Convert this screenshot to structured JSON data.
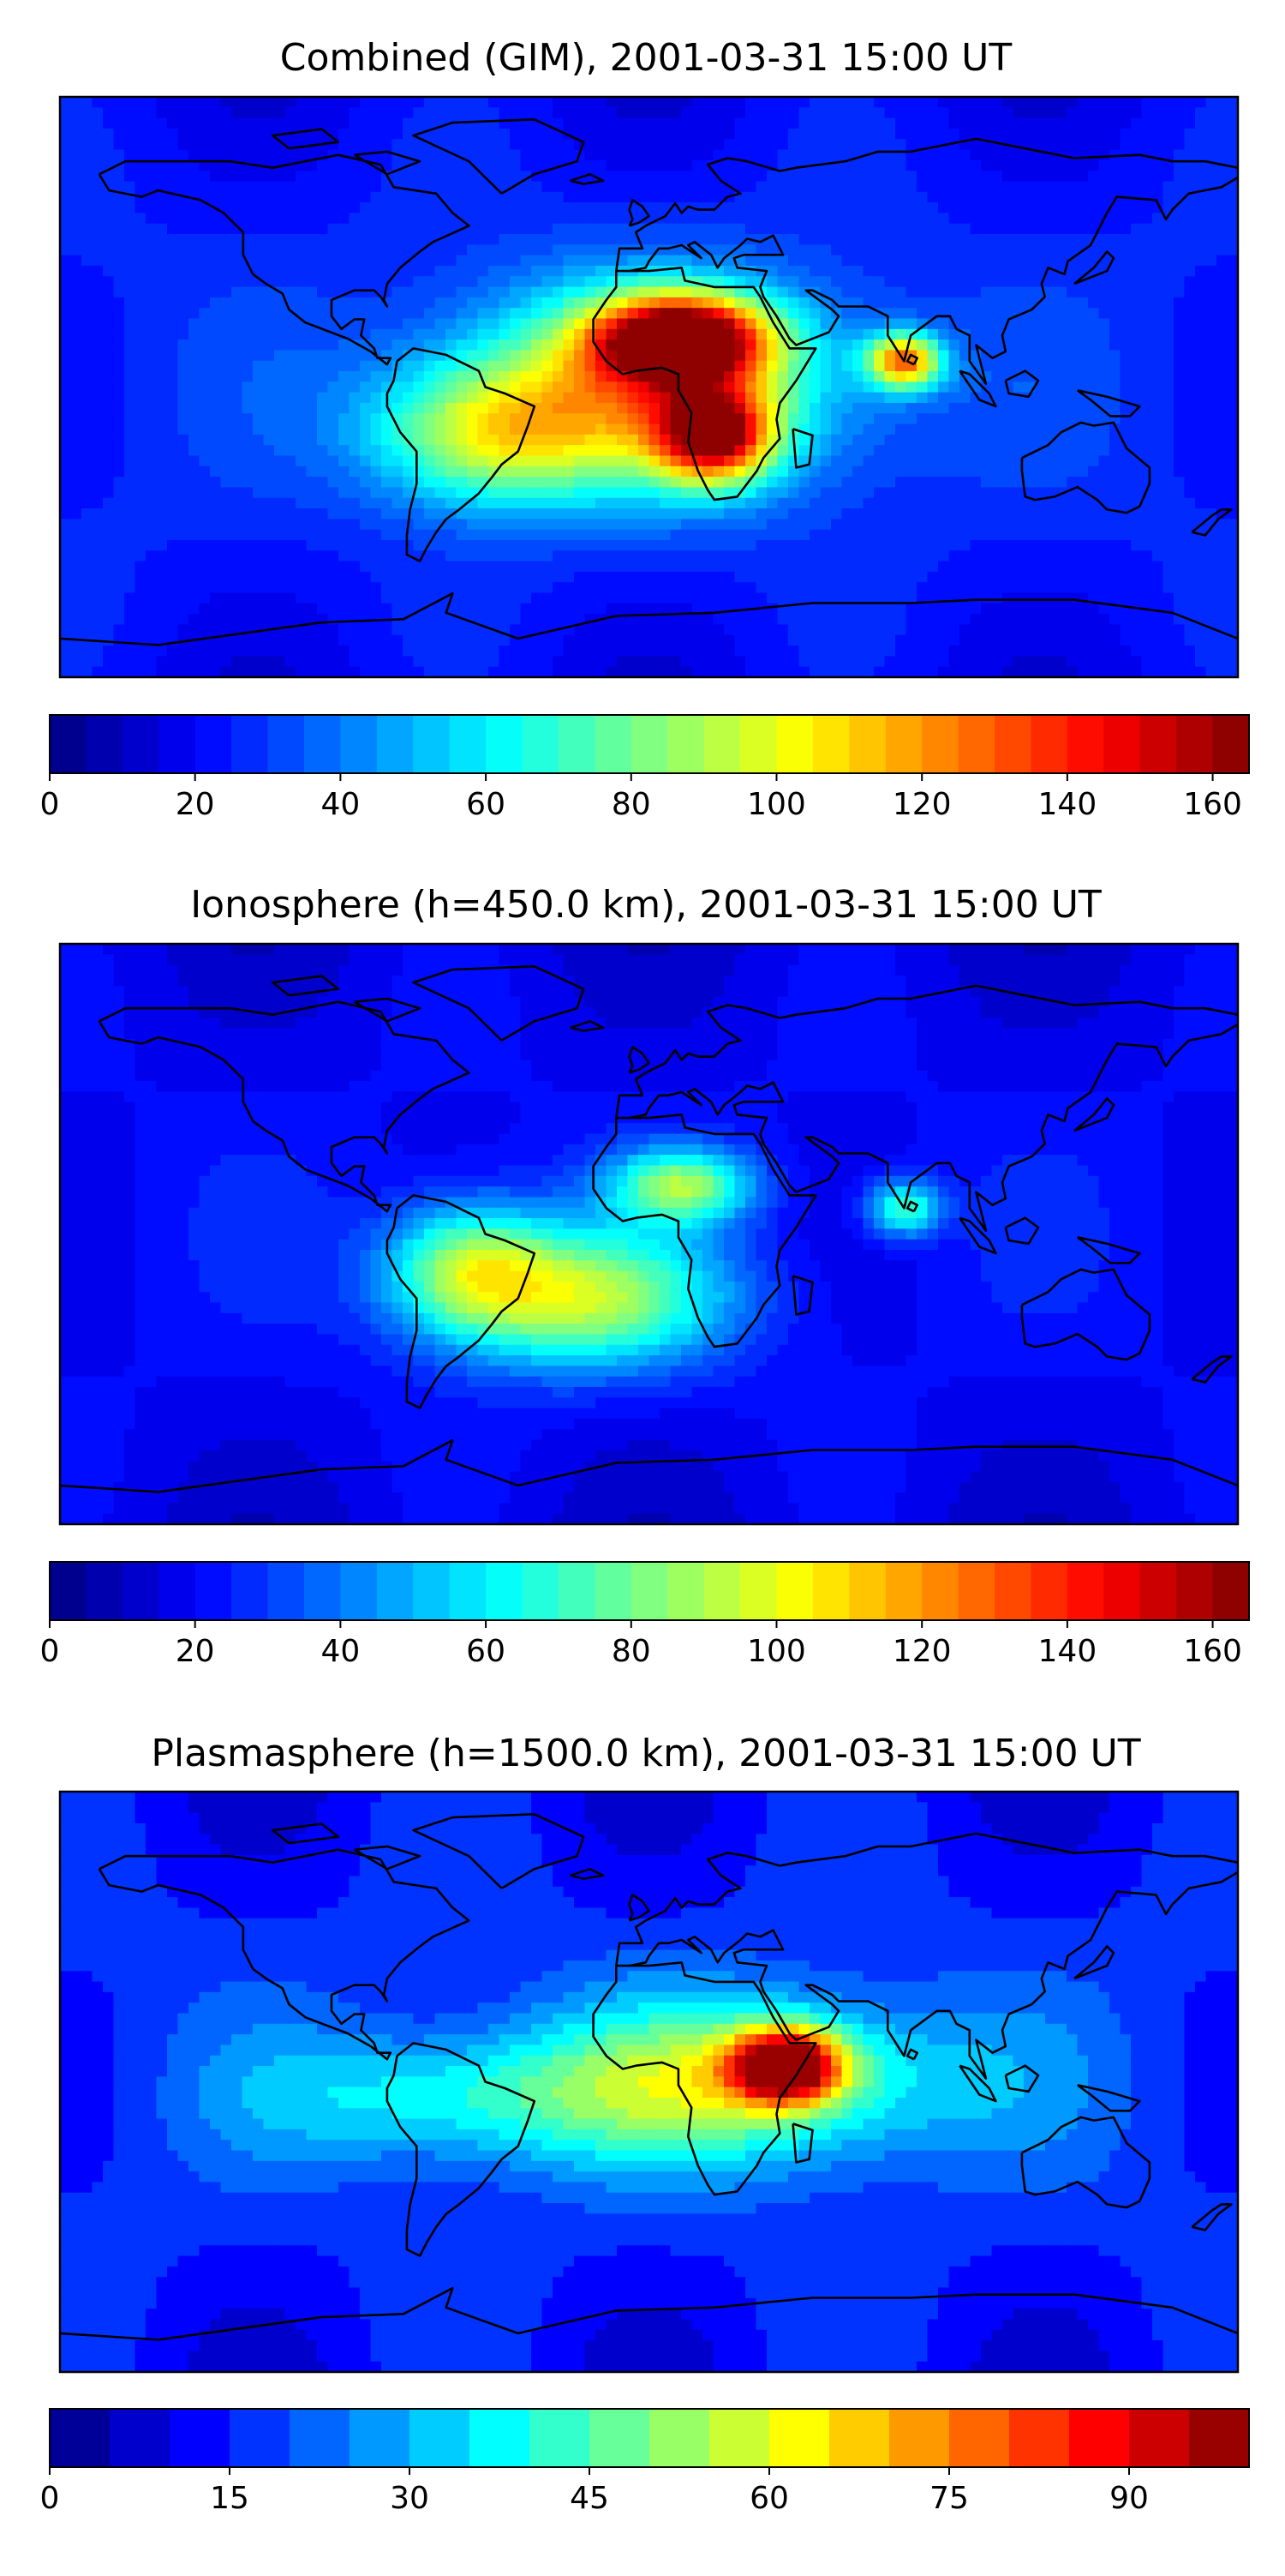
{
  "chart_data": [
    {
      "type": "heatmap",
      "title": "Combined (GIM), 2001-03-31 15:00 UT",
      "colorbar": {
        "min": 0,
        "max": 165,
        "levels": 33,
        "ticks": [
          0,
          20,
          40,
          60,
          80,
          100,
          120,
          140,
          160
        ],
        "colormap": "jet"
      },
      "peaks": [
        {
          "lon": 10,
          "lat": 15,
          "value": 160,
          "sx": 18,
          "sy": 9
        },
        {
          "lon": 20,
          "lat": -15,
          "value": 135,
          "sx": 12,
          "sy": 10
        },
        {
          "lon": 78,
          "lat": 8,
          "value": 125,
          "sx": 8,
          "sy": 6
        },
        {
          "lon": -50,
          "lat": -15,
          "value": 85,
          "sx": 25,
          "sy": 15
        },
        {
          "lon": 0,
          "lat": 0,
          "value": 105,
          "sx": 40,
          "sy": 22
        }
      ],
      "background": 28
    },
    {
      "type": "heatmap",
      "title": "Ionosphere  (h=450.0 km), 2001-03-31 15:00 UT",
      "colorbar": {
        "min": 0,
        "max": 165,
        "levels": 33,
        "ticks": [
          0,
          20,
          40,
          60,
          80,
          100,
          120,
          140,
          160
        ],
        "colormap": "jet"
      },
      "peaks": [
        {
          "lon": -20,
          "lat": -20,
          "value": 90,
          "sx": 30,
          "sy": 15
        },
        {
          "lon": 10,
          "lat": 15,
          "value": 85,
          "sx": 15,
          "sy": 8
        },
        {
          "lon": 78,
          "lat": 8,
          "value": 75,
          "sx": 8,
          "sy": 6
        },
        {
          "lon": -55,
          "lat": -10,
          "value": 80,
          "sx": 18,
          "sy": 14
        }
      ],
      "background": 22
    },
    {
      "type": "heatmap",
      "title": "Plasmasphere (h=1500.0 km), 2001-03-31 15:00 UT",
      "colorbar": {
        "min": 0,
        "max": 100,
        "levels": 20,
        "ticks": [
          0,
          15,
          30,
          45,
          60,
          75,
          90
        ],
        "colormap": "jet"
      },
      "peaks": [
        {
          "lon": 42,
          "lat": 5,
          "value": 95,
          "sx": 12,
          "sy": 8
        },
        {
          "lon": 30,
          "lat": 0,
          "value": 55,
          "sx": 45,
          "sy": 18
        },
        {
          "lon": -60,
          "lat": -5,
          "value": 40,
          "sx": 40,
          "sy": 14
        }
      ],
      "background": 18
    }
  ]
}
